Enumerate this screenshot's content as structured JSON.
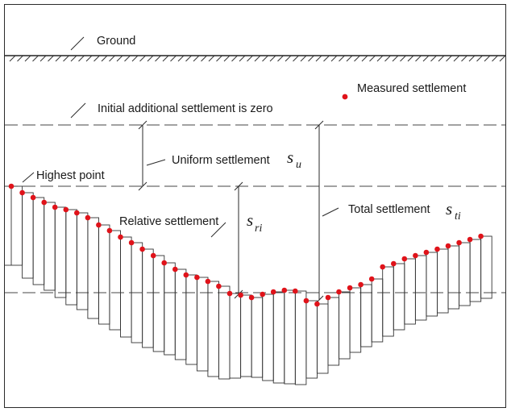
{
  "labels": {
    "ground": "Ground",
    "measured": "Measured settlement",
    "initial": "Initial additional settlement is zero",
    "uniform": "Uniform settlement",
    "highest": "Highest point",
    "relative": "Relative settlement",
    "total": "Total settlement"
  },
  "symbols": {
    "su_main": "s",
    "su_sub": "u",
    "sri_main": "s",
    "sri_sub": "ri",
    "sti_main": "s",
    "sti_sub": "ti"
  },
  "colors": {
    "point": "#e0131a",
    "line": "#2a2a2a"
  },
  "series": {
    "measured_points": [
      0,
      8,
      14,
      20,
      26,
      29,
      33,
      39,
      48,
      55,
      63,
      70,
      78,
      86,
      95,
      103,
      110,
      113,
      118,
      124,
      133,
      135,
      138,
      134,
      131,
      129,
      130,
      142,
      146,
      138,
      131,
      126,
      122,
      115,
      100,
      96,
      90,
      86,
      82,
      78,
      74,
      70,
      66,
      62
    ],
    "bar_bottoms": [
      98,
      114,
      122,
      129,
      138,
      147,
      153,
      164,
      171,
      178,
      187,
      194,
      200,
      205,
      209,
      215,
      221,
      229,
      236,
      239,
      238,
      236,
      237,
      241,
      244,
      245,
      246,
      238,
      232,
      222,
      214,
      206,
      199,
      193,
      186,
      178,
      171,
      166,
      161,
      157,
      152,
      148,
      143,
      139
    ]
  }
}
